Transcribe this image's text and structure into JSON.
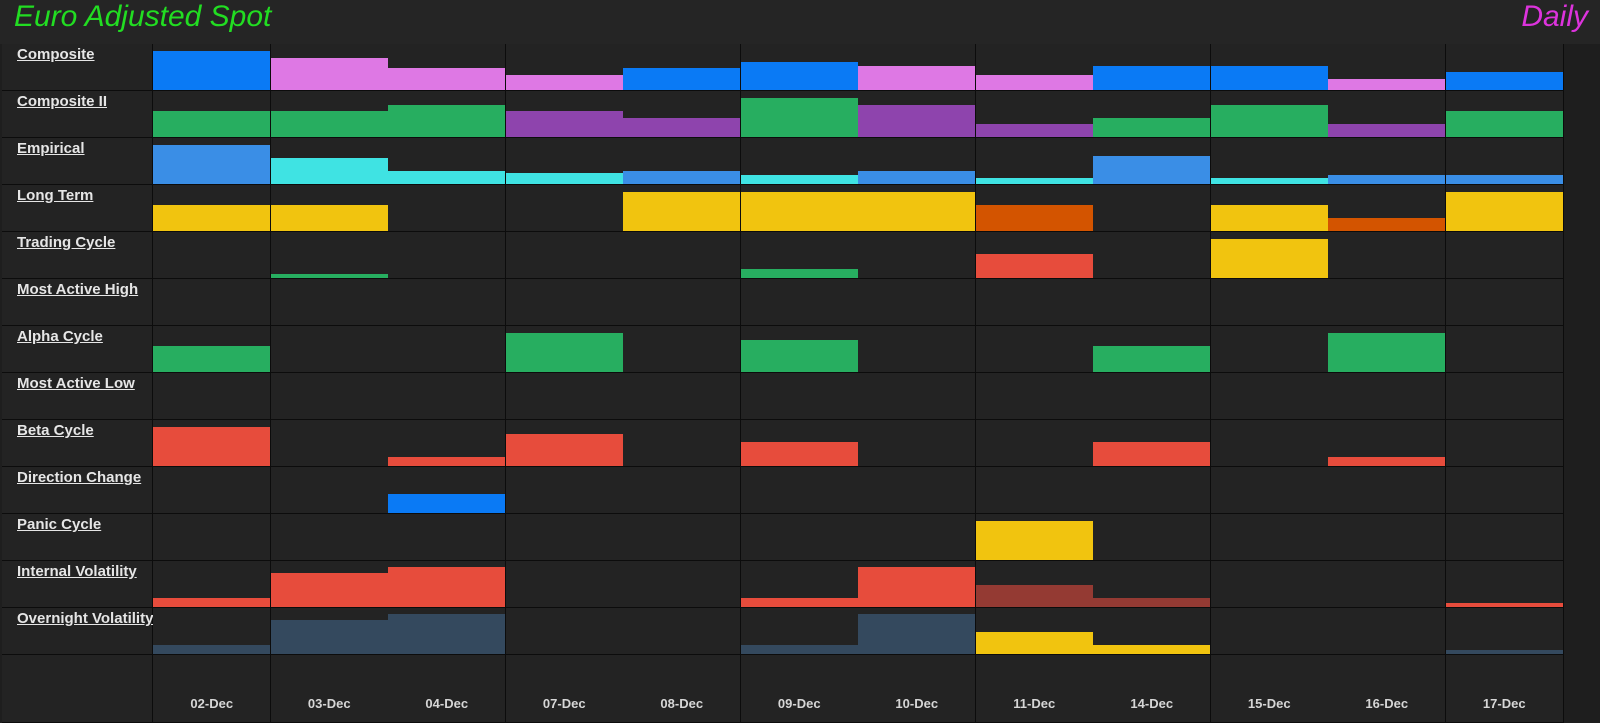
{
  "header": {
    "title": "Euro Adjusted Spot",
    "timeframe": "Daily"
  },
  "colors": {
    "blue": "#0a7af5",
    "pink": "#de78e4",
    "green": "#27ae60",
    "purple": "#8e44ad",
    "lightblue": "#3a8ee6",
    "cyan": "#3fe3e3",
    "yellow": "#f1c40f",
    "orange": "#d35400",
    "red": "#e74c3c",
    "darkred": "#943a33",
    "slate": "#34495e"
  },
  "chart_data": {
    "type": "heatmap",
    "title": "Euro Adjusted Spot",
    "subtitle": "Daily",
    "categories": [
      "02-Dec",
      "03-Dec",
      "04-Dec",
      "07-Dec",
      "08-Dec",
      "09-Dec",
      "10-Dec",
      "11-Dec",
      "14-Dec",
      "15-Dec",
      "16-Dec",
      "17-Dec"
    ],
    "value_range": [
      0,
      1
    ],
    "rows": [
      {
        "name": "Composite",
        "values": [
          0.9,
          0.75,
          0.5,
          0.35,
          0.5,
          0.65,
          0.55,
          0.35,
          0.55,
          0.55,
          0.25,
          0.42
        ],
        "colors": [
          "blue",
          "pink",
          "pink",
          "pink",
          "blue",
          "blue",
          "pink",
          "pink",
          "blue",
          "blue",
          "pink",
          "blue"
        ]
      },
      {
        "name": "Composite II",
        "values": [
          0.6,
          0.6,
          0.75,
          0.6,
          0.45,
          0.9,
          0.75,
          0.3,
          0.45,
          0.75,
          0.3,
          0.6
        ],
        "colors": [
          "green",
          "green",
          "green",
          "purple",
          "purple",
          "green",
          "purple",
          "purple",
          "green",
          "green",
          "purple",
          "green"
        ]
      },
      {
        "name": "Empirical",
        "values": [
          0.9,
          0.6,
          0.3,
          0.25,
          0.3,
          0.2,
          0.3,
          0.15,
          0.65,
          0.15,
          0.2,
          0.2
        ],
        "colors": [
          "lightblue",
          "cyan",
          "cyan",
          "cyan",
          "lightblue",
          "cyan",
          "lightblue",
          "cyan",
          "lightblue",
          "cyan",
          "lightblue",
          "lightblue"
        ]
      },
      {
        "name": "Long Term",
        "values": [
          0.6,
          0.6,
          0,
          0,
          0.9,
          0.9,
          0.9,
          0.6,
          0,
          0.6,
          0.3,
          0.9
        ],
        "colors": [
          "yellow",
          "yellow",
          "",
          "",
          "yellow",
          "yellow",
          "yellow",
          "orange",
          "",
          "yellow",
          "orange",
          "yellow"
        ]
      },
      {
        "name": "Trading Cycle",
        "values": [
          0,
          0.1,
          0,
          0,
          0,
          0.2,
          0,
          0.55,
          0,
          0.9,
          0,
          0
        ],
        "colors": [
          "",
          "green",
          "",
          "",
          "",
          "green",
          "",
          "red",
          "",
          "yellow",
          "",
          ""
        ]
      },
      {
        "name": "Most Active High",
        "values": [
          0,
          0,
          0,
          0,
          0,
          0,
          0,
          0,
          0,
          0,
          0,
          0
        ],
        "colors": [
          "",
          "",
          "",
          "",
          "",
          "",
          "",
          "",
          "",
          "",
          "",
          ""
        ]
      },
      {
        "name": "Alpha Cycle",
        "values": [
          0.6,
          0,
          0,
          0.9,
          0,
          0.75,
          0,
          0,
          0.6,
          0,
          0.9,
          0
        ],
        "colors": [
          "green",
          "",
          "",
          "green",
          "",
          "green",
          "",
          "",
          "green",
          "",
          "green",
          ""
        ]
      },
      {
        "name": "Most Active Low",
        "values": [
          0,
          0,
          0,
          0,
          0,
          0,
          0,
          0,
          0,
          0,
          0,
          0
        ],
        "colors": [
          "",
          "",
          "",
          "",
          "",
          "",
          "",
          "",
          "",
          "",
          "",
          ""
        ]
      },
      {
        "name": "Beta Cycle",
        "values": [
          0.9,
          0,
          0.2,
          0.75,
          0,
          0.55,
          0,
          0,
          0.55,
          0,
          0.2,
          0
        ],
        "colors": [
          "red",
          "",
          "red",
          "red",
          "",
          "red",
          "",
          "",
          "red",
          "",
          "red",
          ""
        ]
      },
      {
        "name": "Direction Change",
        "values": [
          0,
          0,
          0.45,
          0,
          0,
          0,
          0,
          0,
          0,
          0,
          0,
          0
        ],
        "colors": [
          "",
          "",
          "blue",
          "",
          "",
          "",
          "",
          "",
          "",
          "",
          "",
          ""
        ]
      },
      {
        "name": "Panic Cycle",
        "values": [
          0,
          0,
          0,
          0,
          0,
          0,
          0,
          0.9,
          0,
          0,
          0,
          0
        ],
        "colors": [
          "",
          "",
          "",
          "",
          "",
          "",
          "",
          "yellow",
          "",
          "",
          "",
          ""
        ]
      },
      {
        "name": "Internal Volatility",
        "values": [
          0.22,
          0.8,
          0.92,
          0,
          0,
          0.22,
          0.92,
          0.5,
          0.22,
          0,
          0,
          0.1
        ],
        "colors": [
          "red",
          "red",
          "red",
          "",
          "",
          "red",
          "red",
          "darkred",
          "darkred",
          "",
          "",
          "red"
        ]
      },
      {
        "name": "Overnight Volatility",
        "values": [
          0.22,
          0.8,
          0.92,
          0,
          0,
          0.22,
          0.92,
          0.5,
          0.22,
          0,
          0,
          0.1
        ],
        "colors": [
          "slate",
          "slate",
          "slate",
          "",
          "",
          "slate",
          "slate",
          "yellow",
          "yellow",
          "",
          "",
          "slate"
        ]
      }
    ]
  }
}
